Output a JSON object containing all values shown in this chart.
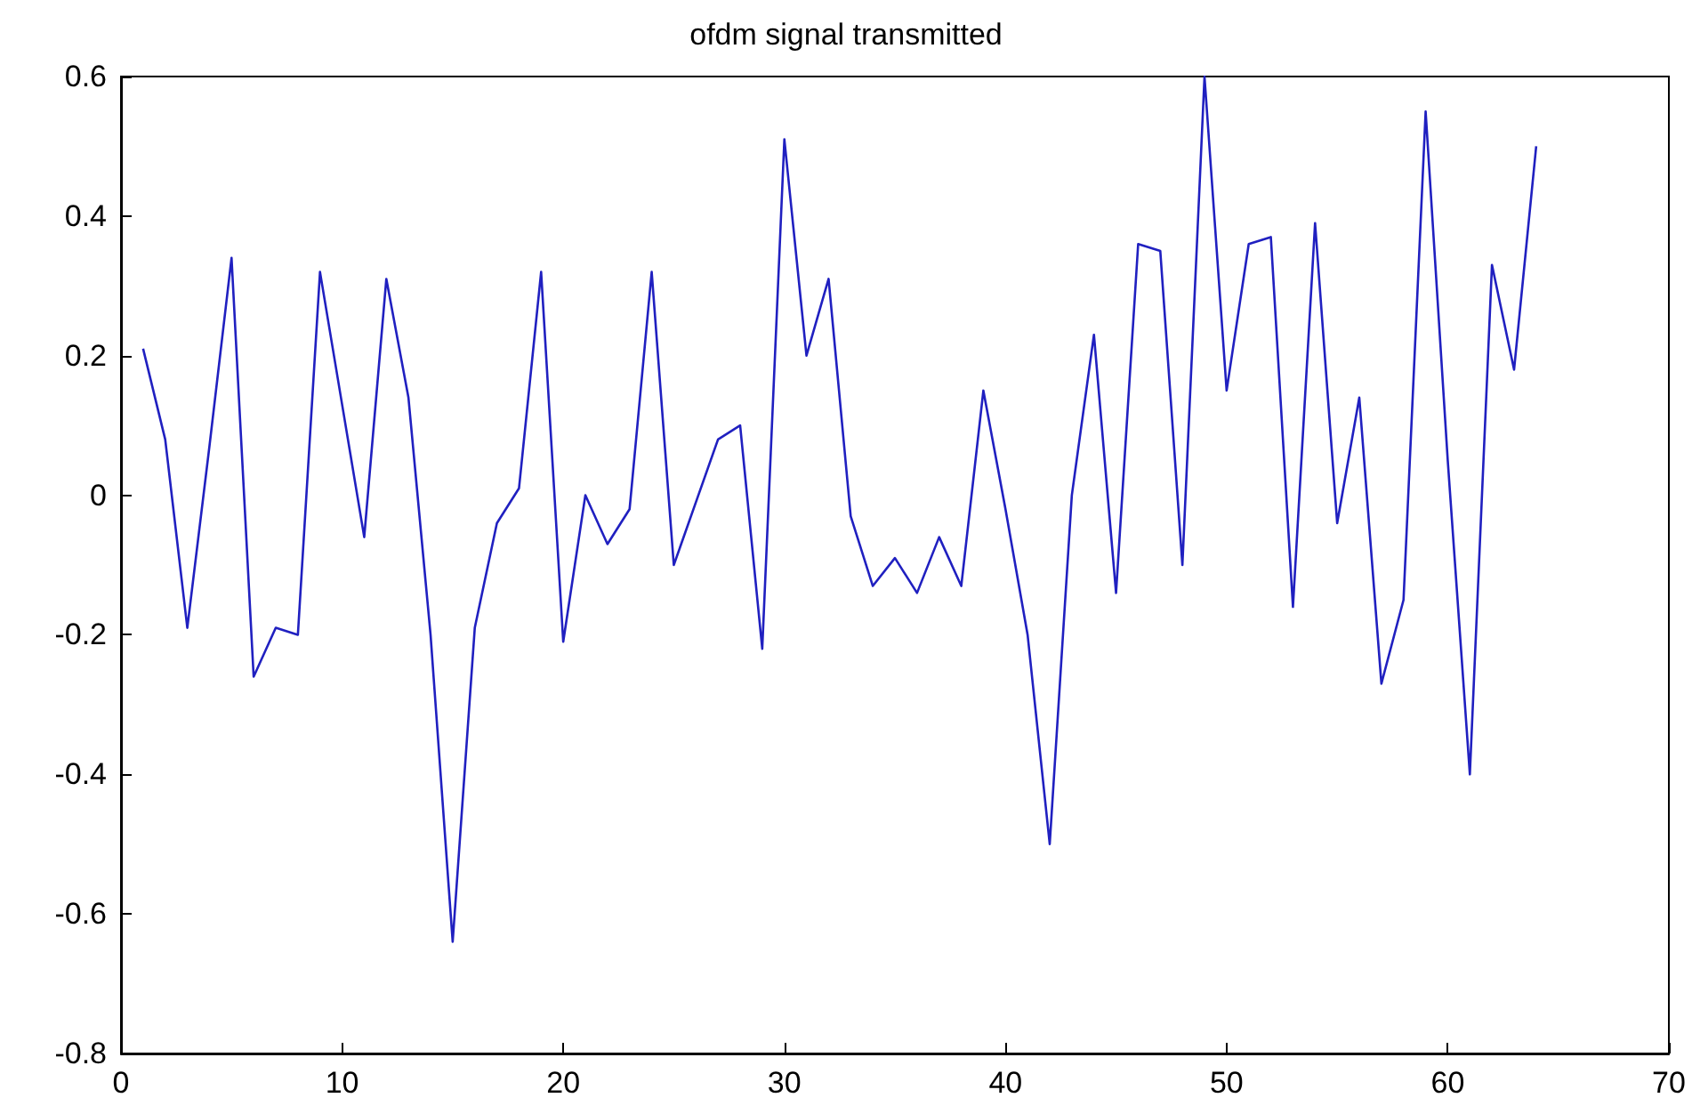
{
  "chart_data": {
    "type": "line",
    "title": "ofdm signal transmitted",
    "x": [
      1,
      2,
      3,
      4,
      5,
      6,
      7,
      8,
      9,
      10,
      11,
      12,
      13,
      14,
      15,
      16,
      17,
      18,
      19,
      20,
      21,
      22,
      23,
      24,
      25,
      26,
      27,
      28,
      29,
      30,
      31,
      32,
      33,
      34,
      35,
      36,
      37,
      38,
      39,
      40,
      41,
      42,
      43,
      44,
      45,
      46,
      47,
      48,
      49,
      50,
      51,
      52,
      53,
      54,
      55,
      56,
      57,
      58,
      59,
      60,
      61,
      62,
      63,
      64
    ],
    "series": [
      {
        "color": "#2020c0",
        "values": [
          0.21,
          0.08,
          -0.19,
          0.07,
          0.34,
          -0.26,
          -0.19,
          -0.2,
          0.32,
          0.13,
          -0.06,
          0.31,
          0.14,
          -0.2,
          -0.64,
          -0.19,
          -0.04,
          0.01,
          0.32,
          -0.21,
          0.0,
          -0.07,
          -0.02,
          0.32,
          -0.1,
          -0.01,
          0.08,
          0.1,
          -0.22,
          0.51,
          0.2,
          0.31,
          -0.03,
          -0.13,
          -0.09,
          -0.14,
          -0.06,
          -0.13,
          0.15,
          -0.02,
          -0.2,
          -0.5,
          0.0,
          0.23,
          -0.14,
          0.36,
          0.35,
          -0.1,
          0.6,
          0.15,
          0.36,
          0.37,
          -0.16,
          0.39,
          -0.04,
          0.14,
          -0.27,
          -0.15,
          0.55,
          0.05,
          -0.4,
          0.33,
          0.18,
          0.5
        ]
      }
    ],
    "xlim": [
      0,
      70
    ],
    "xticks": [
      0,
      10,
      20,
      30,
      40,
      50,
      60,
      70
    ],
    "ylim": [
      -0.8,
      0.6
    ],
    "yticks": [
      -0.8,
      -0.6,
      -0.4,
      -0.2,
      0,
      0.2,
      0.4,
      0.6
    ],
    "grid": false,
    "marker": "none",
    "line_style": "solid"
  }
}
